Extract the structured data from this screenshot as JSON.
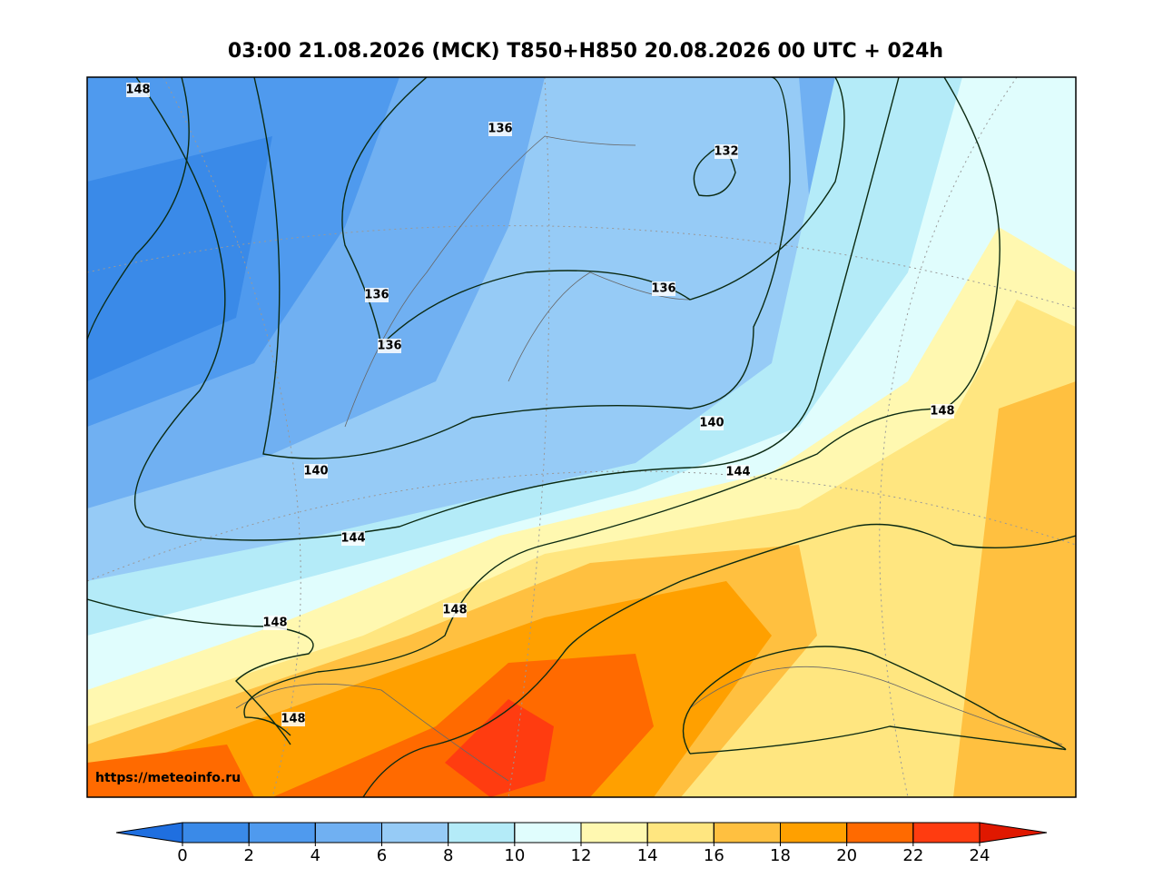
{
  "header": {
    "title": "03:00 21.08.2026 (MCK) T850+H850 20.08.2026 00 UTC + 024h"
  },
  "map": {
    "contour_labels": [
      148,
      136,
      132,
      136,
      136,
      136,
      140,
      140,
      144,
      148,
      144,
      148,
      148,
      148
    ],
    "watermark": "https://meteoinfo.ru"
  },
  "colorbar": {
    "ticks": [
      0,
      2,
      4,
      6,
      8,
      10,
      12,
      14,
      16,
      18,
      20,
      22,
      24
    ],
    "colors": [
      "#1f6fe0",
      "#3a8ae8",
      "#4f9aee",
      "#70b0f2",
      "#96cbf6",
      "#b4ebf8",
      "#e0fdfd",
      "#fff8b0",
      "#ffe680",
      "#ffc040",
      "#ffa000",
      "#ff6a00",
      "#ff3c10",
      "#e01800"
    ]
  }
}
